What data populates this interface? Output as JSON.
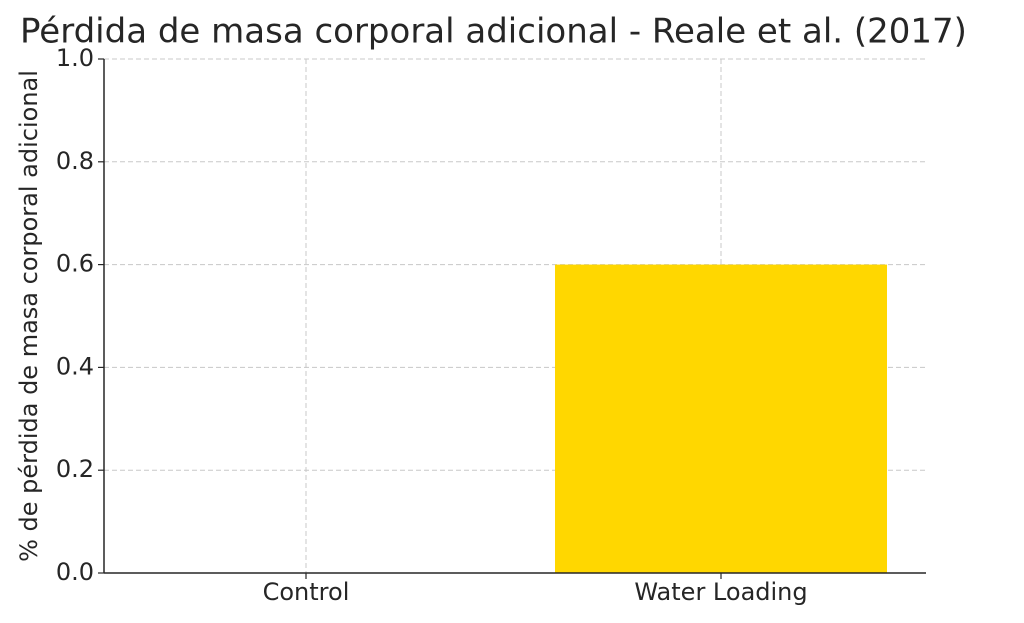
{
  "chart_data": {
    "type": "bar",
    "title": "Pérdida de masa corporal adicional - Reale et al. (2017)",
    "y_label": "% de pérdida de masa corporal adicional",
    "categories": [
      "Control",
      "Water Loading"
    ],
    "values": [
      0,
      0.6
    ],
    "color": "#ffd700",
    "ylim": [
      0,
      1
    ],
    "yticks": [
      {
        "value": 0,
        "label": "0.0"
      },
      {
        "value": 0.2,
        "label": "0.2"
      },
      {
        "value": 0.4,
        "label": "0.4"
      },
      {
        "value": 0.6,
        "label": "0.6"
      },
      {
        "value": 0.8,
        "label": "0.8"
      },
      {
        "value": 1,
        "label": "1.0"
      }
    ],
    "grid": true
  }
}
